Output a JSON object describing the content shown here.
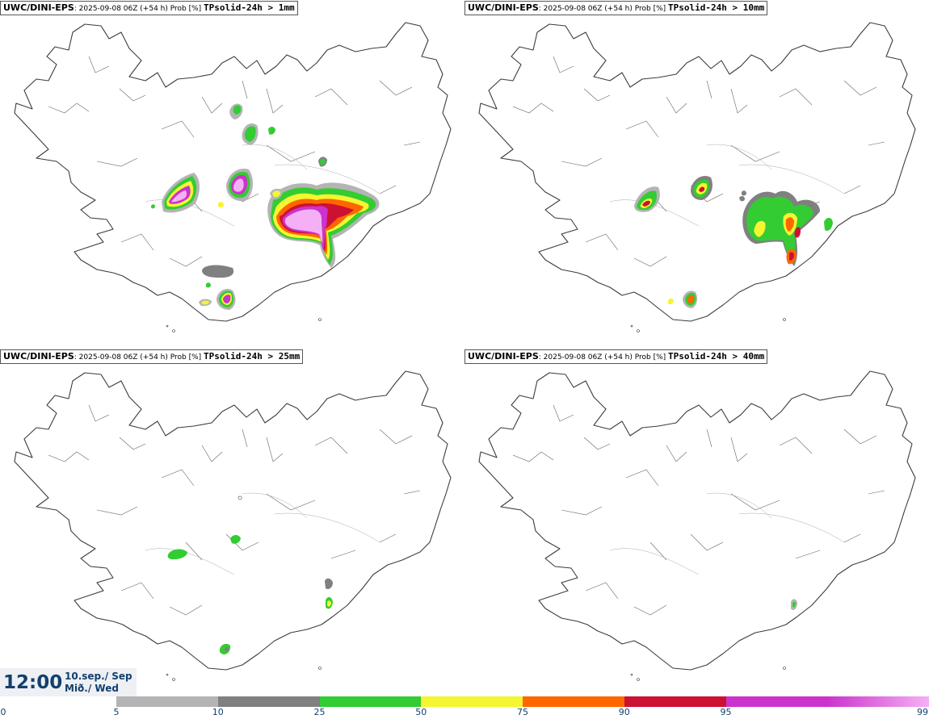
{
  "panels": [
    {
      "model": "UWC/DINI-EPS",
      "info": ": 2025-09-08 06Z (+54 h) Prob [%] ",
      "threshold": "TPsolid-24h > 1mm"
    },
    {
      "model": "UWC/DINI-EPS",
      "info": ": 2025-09-08 06Z (+54 h) Prob [%] ",
      "threshold": "TPsolid-24h > 10mm"
    },
    {
      "model": "UWC/DINI-EPS",
      "info": ": 2025-09-08 06Z (+54 h) Prob [%] ",
      "threshold": "TPsolid-24h > 25mm"
    },
    {
      "model": "UWC/DINI-EPS",
      "info": ": 2025-09-08 06Z (+54 h) Prob [%] ",
      "threshold": "TPsolid-24h > 40mm"
    }
  ],
  "valid_time": {
    "time": "12:00",
    "date_line": "10.sep./ Sep",
    "day_line": "Mið./ Wed"
  },
  "colorbar": {
    "ticks": [
      "0",
      "5",
      "10",
      "25",
      "50",
      "75",
      "90",
      "95",
      "99"
    ],
    "bins": [
      {
        "from": 5,
        "to": 10,
        "color": "#b4b4b4"
      },
      {
        "from": 10,
        "to": 25,
        "color": "#808080"
      },
      {
        "from": 25,
        "to": 50,
        "color": "#33cc33"
      },
      {
        "from": 50,
        "to": 75,
        "color": "#f5f531"
      },
      {
        "from": 75,
        "to": 90,
        "color": "#ff6600"
      },
      {
        "from": 90,
        "to": 95,
        "color": "#cc1133"
      },
      {
        "from": 95,
        "to": 99,
        "color": "#cc33cc"
      }
    ],
    "last_bin_gradient": [
      "#cc33cc",
      "#f5b0f5"
    ]
  }
}
